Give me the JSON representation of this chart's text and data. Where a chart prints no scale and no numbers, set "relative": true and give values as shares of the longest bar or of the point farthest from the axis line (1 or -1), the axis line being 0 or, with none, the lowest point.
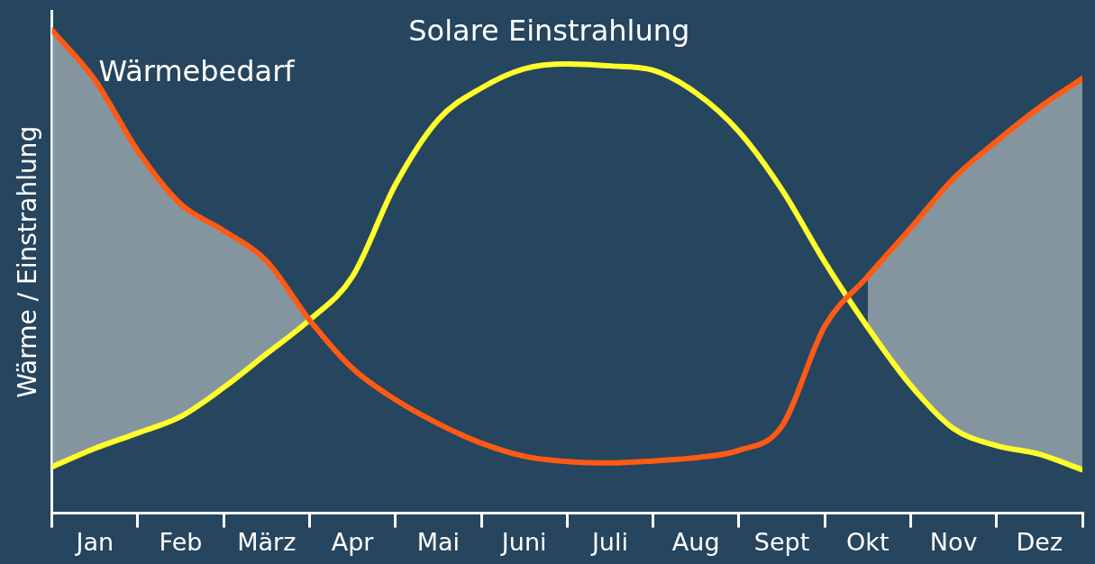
{
  "chart_data": {
    "type": "line",
    "relative": true,
    "ylabel": "Wärme / Einstrahlung",
    "categories": [
      null,
      "Jan",
      null,
      "Feb",
      null,
      "März",
      null,
      "Apr",
      null,
      "Mai",
      null,
      "Juni",
      null,
      "Juli",
      null,
      "Aug",
      null,
      "Sept",
      null,
      "Okt",
      null,
      "Nov",
      null,
      "Dez",
      null
    ],
    "tick_labels": "x",
    "legend": false,
    "grid": false,
    "marker": "none",
    "line_style": "solid",
    "series": [
      {
        "name": "Wärmebedarf",
        "color": "#ff5a14",
        "values": [
          1.0,
          0.897,
          0.75,
          0.64,
          0.585,
          0.522,
          0.4,
          0.3,
          0.235,
          0.185,
          0.145,
          0.118,
          0.107,
          0.104,
          0.108,
          0.115,
          0.13,
          0.18,
          0.387,
          0.49,
          0.59,
          0.693,
          0.77,
          0.84,
          0.9
        ],
        "lower": [
          0.096,
          0.134,
          0.166,
          0.2,
          0.26,
          0.33,
          0.4,
          null,
          null,
          null,
          null,
          null,
          null,
          null,
          null,
          null,
          null,
          null,
          null,
          0.385,
          0.265,
          0.175,
          0.14,
          0.122,
          0.09
        ],
        "upper": [
          1.0,
          0.897,
          0.75,
          0.64,
          0.585,
          0.522,
          0.4,
          null,
          null,
          null,
          null,
          null,
          null,
          null,
          null,
          null,
          null,
          null,
          null,
          0.49,
          0.59,
          0.693,
          0.77,
          0.84,
          0.9
        ]
      },
      {
        "name": "Solare Einstrahlung",
        "color": "#ffff2a",
        "values": [
          0.096,
          0.134,
          0.166,
          0.2,
          0.26,
          0.33,
          0.4,
          0.49,
          0.68,
          0.815,
          0.88,
          0.92,
          0.93,
          0.926,
          0.917,
          0.87,
          0.79,
          0.67,
          0.52,
          0.385,
          0.265,
          0.175,
          0.14,
          0.122,
          0.09
        ]
      }
    ]
  }
}
